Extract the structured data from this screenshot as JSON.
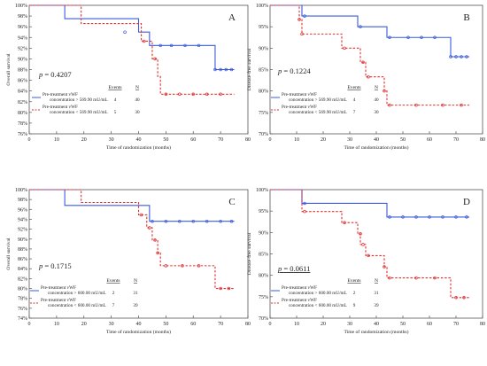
{
  "chart_data": [
    {
      "type": "line",
      "panel": "A",
      "xlabel": "Time of randomization (months)",
      "ylabel": "Overall survival",
      "xlim": [
        0,
        80
      ],
      "ylim": [
        76,
        100
      ],
      "x_ticks": [
        0,
        10,
        20,
        30,
        40,
        50,
        60,
        70,
        80
      ],
      "y_ticks": [
        76,
        78,
        80,
        82,
        84,
        86,
        88,
        90,
        92,
        94,
        96,
        98,
        100
      ],
      "y_tick_suffix": "%",
      "grid": false,
      "p_label": "p",
      "p_value": "= 0.4207",
      "p_underlined": false,
      "legend_position": "bottom-center",
      "legend_headers": [
        "Events",
        "N"
      ],
      "series": [
        {
          "name": "Pre-treatment vWF concentration > 569.90 mU/mL",
          "label_line1": "Pre-treatment vWF",
          "label_line2": "concentration > 569.90 mU/mL",
          "events": "4",
          "n": "40",
          "color": "#3b5bdb",
          "dash": false,
          "steps": [
            [
              0,
              100
            ],
            [
              13,
              97.5
            ],
            [
              40,
              95
            ],
            [
              44,
              92.5
            ],
            [
              68,
              88
            ],
            [
              75,
              88
            ]
          ],
          "censored": [
            [
              35,
              95
            ],
            [
              48,
              92.5
            ],
            [
              52,
              92.5
            ],
            [
              57,
              92.5
            ],
            [
              62,
              92.5
            ],
            [
              68,
              88
            ],
            [
              70,
              88
            ],
            [
              72,
              88
            ],
            [
              74,
              88
            ]
          ]
        },
        {
          "name": "Pre-treatment vWF concentration < 569.90 mU/mL",
          "label_line1": "Pre-treatment vWF",
          "label_line2": "concentration < 569.90 mU/mL",
          "events": "5",
          "n": "30",
          "color": "#e03131",
          "dash": true,
          "steps": [
            [
              0,
              100
            ],
            [
              19,
              96.6
            ],
            [
              41,
              93.3
            ],
            [
              45,
              90
            ],
            [
              47,
              86.7
            ],
            [
              48,
              83.4
            ],
            [
              75,
              83.4
            ]
          ],
          "censored": [
            [
              42,
              93.3
            ],
            [
              46,
              90
            ],
            [
              50,
              83.4
            ],
            [
              55,
              83.4
            ],
            [
              60,
              83.4
            ],
            [
              65,
              83.4
            ],
            [
              70,
              83.4
            ]
          ]
        }
      ]
    },
    {
      "type": "line",
      "panel": "B",
      "xlabel": "Time of randomization (months)",
      "ylabel": "Disease-free survival",
      "xlim": [
        0,
        80
      ],
      "ylim": [
        70,
        100
      ],
      "x_ticks": [
        0,
        10,
        20,
        30,
        40,
        50,
        60,
        70,
        80
      ],
      "y_ticks": [
        70,
        75,
        80,
        85,
        90,
        95,
        100
      ],
      "y_tick_suffix": "%",
      "grid": false,
      "p_label": "p",
      "p_value": "= 0.1224",
      "p_underlined": false,
      "legend_position": "bottom-left",
      "legend_headers": [
        "Events",
        "N"
      ],
      "series": [
        {
          "name": "Pre-treatment vWF concentration > 569.90 mU/mL",
          "label_line1": "Pre-treatment vWF",
          "label_line2": "concentration > 569.90 mU/mL",
          "events": "4",
          "n": "40",
          "color": "#3b5bdb",
          "dash": false,
          "steps": [
            [
              0,
              100
            ],
            [
              12,
              97.5
            ],
            [
              33,
              95
            ],
            [
              44,
              92.5
            ],
            [
              68,
              88
            ],
            [
              75,
              88
            ]
          ],
          "censored": [
            [
              13,
              97.5
            ],
            [
              34,
              95
            ],
            [
              45,
              92.5
            ],
            [
              52,
              92.5
            ],
            [
              57,
              92.5
            ],
            [
              62,
              92.5
            ],
            [
              68,
              88
            ],
            [
              70,
              88
            ],
            [
              72,
              88
            ],
            [
              74,
              88
            ]
          ]
        },
        {
          "name": "Pre-treatment vWF concentration < 569.90 mU/mL",
          "label_line1": "Pre-treatment vWF",
          "label_line2": "concentration < 569.90 mU/mL",
          "events": "7",
          "n": "30",
          "color": "#e03131",
          "dash": true,
          "steps": [
            [
              0,
              100
            ],
            [
              11,
              96.7
            ],
            [
              12,
              93.3
            ],
            [
              27,
              90
            ],
            [
              34,
              86.7
            ],
            [
              36,
              83.3
            ],
            [
              43,
              80
            ],
            [
              44,
              76.7
            ],
            [
              75,
              76.7
            ]
          ],
          "censored": [
            [
              11,
              96.7
            ],
            [
              12,
              93.3
            ],
            [
              28,
              90
            ],
            [
              35,
              86.7
            ],
            [
              37,
              83.3
            ],
            [
              43,
              80
            ],
            [
              45,
              76.7
            ],
            [
              55,
              76.7
            ],
            [
              65,
              76.7
            ],
            [
              72,
              76.7
            ]
          ]
        }
      ]
    },
    {
      "type": "line",
      "panel": "C",
      "xlabel": "Time of randomization (months)",
      "ylabel": "Overall survival",
      "xlim": [
        0,
        80
      ],
      "ylim": [
        74,
        100
      ],
      "x_ticks": [
        0,
        10,
        20,
        30,
        40,
        50,
        60,
        70,
        80
      ],
      "y_ticks": [
        74,
        76,
        78,
        80,
        82,
        84,
        86,
        88,
        90,
        92,
        94,
        96,
        98,
        100
      ],
      "y_tick_suffix": "%",
      "grid": false,
      "p_label": "p",
      "p_value": "= 0.1715",
      "p_underlined": false,
      "legend_position": "bottom-left",
      "legend_headers": [
        "Events",
        "N"
      ],
      "series": [
        {
          "name": "Pre-treatment vWF concentration > 600.00 mU/mL",
          "label_line1": "Pre-treatment vWF",
          "label_line2": "concentration > 600.00 mU/mL",
          "events": "2",
          "n": "31",
          "color": "#3b5bdb",
          "dash": false,
          "steps": [
            [
              0,
              100
            ],
            [
              13,
              96.8
            ],
            [
              44,
              93.6
            ],
            [
              75,
              93.6
            ]
          ],
          "censored": [
            [
              45,
              93.6
            ],
            [
              50,
              93.6
            ],
            [
              55,
              93.6
            ],
            [
              60,
              93.6
            ],
            [
              65,
              93.6
            ],
            [
              70,
              93.6
            ],
            [
              74,
              93.6
            ]
          ]
        },
        {
          "name": "Pre-treatment vWF concentration < 600.00 mU/mL",
          "label_line1": "Pre-treatment vWF",
          "label_line2": "concentration < 600.00 mU/mL",
          "events": "7",
          "n": "39",
          "color": "#e03131",
          "dash": true,
          "steps": [
            [
              0,
              100
            ],
            [
              19,
              97.4
            ],
            [
              40,
              94.9
            ],
            [
              43,
              92.3
            ],
            [
              45,
              89.8
            ],
            [
              47,
              87.2
            ],
            [
              48,
              84.6
            ],
            [
              68,
              80
            ],
            [
              75,
              80
            ]
          ],
          "censored": [
            [
              41,
              94.9
            ],
            [
              44,
              92.3
            ],
            [
              46,
              89.8
            ],
            [
              47,
              87.2
            ],
            [
              50,
              84.6
            ],
            [
              56,
              84.6
            ],
            [
              62,
              84.6
            ],
            [
              70,
              80
            ],
            [
              73,
              80
            ]
          ]
        }
      ]
    },
    {
      "type": "line",
      "panel": "D",
      "xlabel": "Time of randomization (months)",
      "ylabel": "Disease-free survival",
      "xlim": [
        0,
        80
      ],
      "ylim": [
        70,
        100
      ],
      "x_ticks": [
        0,
        10,
        20,
        30,
        40,
        50,
        60,
        70,
        80
      ],
      "y_ticks": [
        70,
        75,
        80,
        85,
        90,
        95,
        100
      ],
      "y_tick_suffix": "%",
      "grid": false,
      "p_label": "p",
      "p_value": "= 0.0611",
      "p_underlined": true,
      "legend_position": "bottom-left",
      "legend_headers": [
        "Events",
        "N"
      ],
      "series": [
        {
          "name": "Pre-treatment vWF concentration > 600.00 mU/mL",
          "label_line1": "Pre-treatment vWF",
          "label_line2": "concentration > 600.00 mU/mL",
          "events": "2",
          "n": "31",
          "color": "#3b5bdb",
          "dash": false,
          "steps": [
            [
              0,
              100
            ],
            [
              12,
              96.8
            ],
            [
              44,
              93.6
            ],
            [
              75,
              93.6
            ]
          ],
          "censored": [
            [
              13,
              96.8
            ],
            [
              45,
              93.6
            ],
            [
              50,
              93.6
            ],
            [
              55,
              93.6
            ],
            [
              60,
              93.6
            ],
            [
              65,
              93.6
            ],
            [
              70,
              93.6
            ],
            [
              74,
              93.6
            ]
          ]
        },
        {
          "name": "Pre-treatment vWF concentration < 600.00 mU/mL",
          "label_line1": "Pre-treatment vWF",
          "label_line2": "concentration < 600.00 mU/mL",
          "events": "9",
          "n": "39",
          "color": "#e03131",
          "dash": true,
          "steps": [
            [
              0,
              100
            ],
            [
              12,
              94.9
            ],
            [
              27,
              92.3
            ],
            [
              33,
              89.7
            ],
            [
              34,
              87.2
            ],
            [
              36,
              84.6
            ],
            [
              43,
              82
            ],
            [
              44,
              79.4
            ],
            [
              68,
              74.8
            ],
            [
              75,
              74.8
            ]
          ],
          "censored": [
            [
              13,
              94.9
            ],
            [
              28,
              92.3
            ],
            [
              34,
              89.7
            ],
            [
              35,
              87.2
            ],
            [
              37,
              84.6
            ],
            [
              43,
              82
            ],
            [
              45,
              79.4
            ],
            [
              55,
              79.4
            ],
            [
              62,
              79.4
            ],
            [
              70,
              74.8
            ],
            [
              73,
              74.8
            ]
          ]
        }
      ]
    }
  ]
}
